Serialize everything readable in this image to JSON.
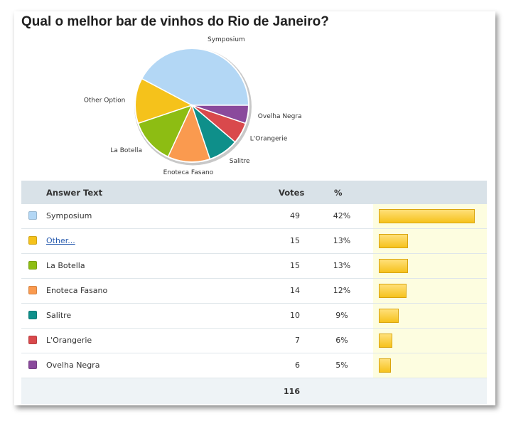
{
  "title": "Qual o melhor bar de vinhos do Rio de Janeiro?",
  "table": {
    "headers": {
      "answer": "Answer Text",
      "votes": "Votes",
      "pct": "%"
    },
    "total": "116"
  },
  "chart_data": {
    "type": "pie",
    "title": "Qual o melhor bar de vinhos do Rio de Janeiro?",
    "total": 116,
    "slices": [
      {
        "label": "Symposium",
        "value": 49,
        "percent": "42%",
        "color": "#b3d7f5",
        "link": false
      },
      {
        "label": "Other...",
        "value": 15,
        "percent": "13%",
        "color": "#f5c21b",
        "link": true,
        "pie_label": "Other Option"
      },
      {
        "label": "La Botella",
        "value": 15,
        "percent": "13%",
        "color": "#8dbd13",
        "link": false
      },
      {
        "label": "Enoteca Fasano",
        "value": 14,
        "percent": "12%",
        "color": "#fa9a4f",
        "link": false
      },
      {
        "label": "Salitre",
        "value": 10,
        "percent": "9%",
        "color": "#0e8f8a",
        "link": false
      },
      {
        "label": "L'Orangerie",
        "value": 7,
        "percent": "6%",
        "color": "#d9494c",
        "link": false
      },
      {
        "label": "Ovelha Negra",
        "value": 6,
        "percent": "5%",
        "color": "#8a4a9c",
        "link": false
      }
    ]
  }
}
